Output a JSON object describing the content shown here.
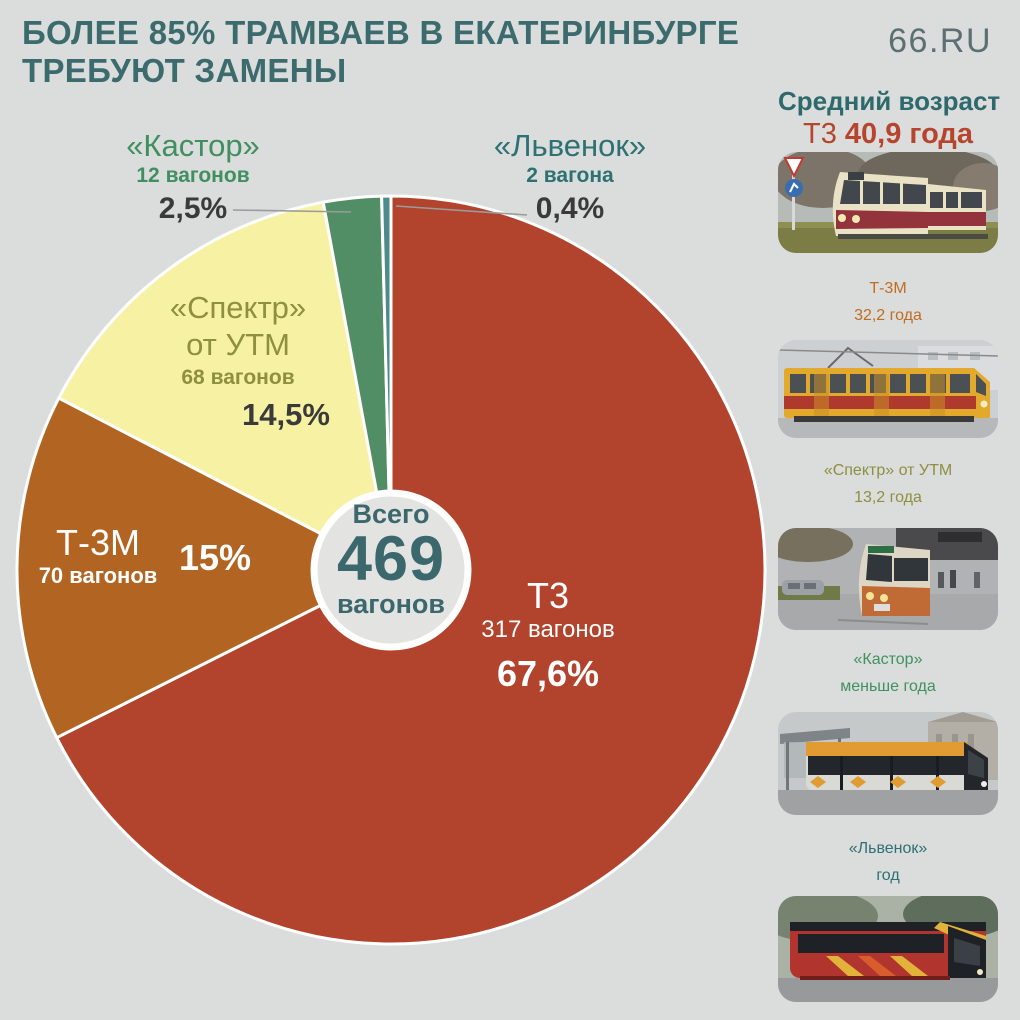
{
  "header": {
    "title_line1": "БОЛЕЕ 85% ТРАМВАЕВ В ЕКАТЕРИНБУРГЕ",
    "title_line2": "ТРЕБУЮТ ЗАМЕНЫ",
    "logo": "66.RU"
  },
  "chart_data": {
    "type": "pie",
    "title": "Более 85% трамваев в Екатеринбурге требуют замены",
    "center": {
      "label": "Всего",
      "value": "469",
      "unit": "вагонов"
    },
    "legend_position": "around-slices",
    "slices": [
      {
        "name": "Т3",
        "count_label": "317 вагонов",
        "percent_label": "67,6%",
        "value": 67.6,
        "color": "#b2432c",
        "label_color": "#ffffff"
      },
      {
        "name": "Т-3М",
        "count_label": "70 вагонов",
        "percent_label": "15%",
        "value": 15,
        "color": "#b26522",
        "label_color": "#ffffff"
      },
      {
        "name": "«Спектр» от УТМ",
        "name_line1": "«Спектр»",
        "name_line2": "от УТМ",
        "count_label": "68 вагонов",
        "percent_label": "14,5%",
        "value": 14.5,
        "color": "#f7f1a3",
        "label_color": "#8e8f3f"
      },
      {
        "name": "«Кастор»",
        "count_label": "12 вагонов",
        "percent_label": "2,5%",
        "value": 2.5,
        "color": "#518e65",
        "label_color": "#3f8f60"
      },
      {
        "name": "«Львенок»",
        "count_label": "2 вагона",
        "percent_label": "0,4%",
        "value": 0.4,
        "color": "#4f8a8a",
        "label_color": "#2d7173"
      }
    ]
  },
  "sidebar": {
    "heading": "Средний возраст",
    "entries": [
      {
        "name": "Т3",
        "age": "40,9 года",
        "color": "#b5452c",
        "photo": "tram-t3"
      },
      {
        "name": "Т-3М",
        "age": "32,2 года",
        "color": "#c06d1f",
        "photo": "tram-t3m"
      },
      {
        "name": "«Спектр» от УТМ",
        "age": "13,2 года",
        "color": "#8e8f3f",
        "photo": "tram-spektr"
      },
      {
        "name": "«Кастор»",
        "age": "меньше года",
        "color": "#3f9160",
        "photo": "tram-kastor"
      },
      {
        "name": "«Львенок»",
        "age": "год",
        "color": "#2d7173",
        "photo": "tram-lvenok"
      }
    ]
  }
}
